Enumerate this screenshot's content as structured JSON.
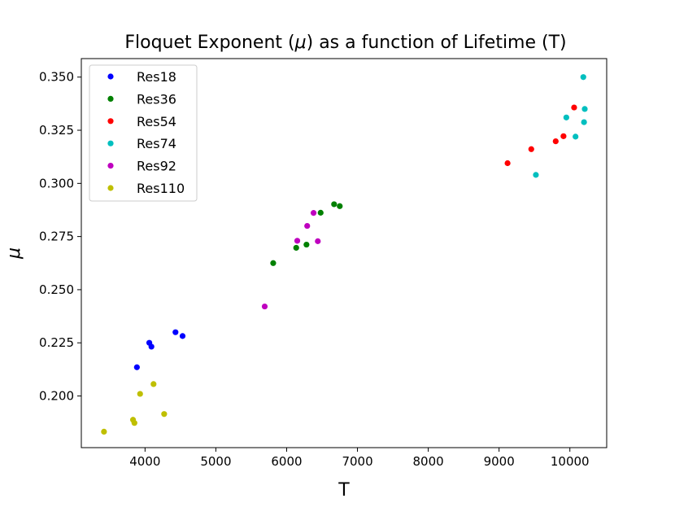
{
  "chart_data": {
    "type": "scatter",
    "title_parts": [
      "Floquet Exponent (",
      "μ",
      ") as a function of Lifetime (T)"
    ],
    "xlabel": "T",
    "ylabel": "μ",
    "xlim": [
      3100,
      10520
    ],
    "ylim": [
      0.1757,
      0.3587
    ],
    "xticks": [
      4000,
      5000,
      6000,
      7000,
      8000,
      9000,
      10000
    ],
    "yticks": [
      0.2,
      0.225,
      0.25,
      0.275,
      0.3,
      0.325,
      0.35
    ],
    "xtick_labels": [
      "4000",
      "5000",
      "6000",
      "7000",
      "8000",
      "9000",
      "10000"
    ],
    "ytick_labels": [
      "0.200",
      "0.225",
      "0.250",
      "0.275",
      "0.300",
      "0.325",
      "0.350"
    ],
    "legend_position": "upper-left",
    "grid": false,
    "series": [
      {
        "name": "Res18",
        "color": "#0000ff",
        "points": [
          [
            3885,
            0.2135
          ],
          [
            4060,
            0.225
          ],
          [
            4090,
            0.2232
          ],
          [
            4430,
            0.23
          ],
          [
            4530,
            0.2282
          ]
        ]
      },
      {
        "name": "Res36",
        "color": "#008000",
        "points": [
          [
            5810,
            0.2625
          ],
          [
            6135,
            0.2697
          ],
          [
            6280,
            0.2712
          ],
          [
            6480,
            0.2862
          ],
          [
            6670,
            0.2902
          ],
          [
            6750,
            0.2893
          ]
        ]
      },
      {
        "name": "Res54",
        "color": "#ff0000",
        "points": [
          [
            9120,
            0.3095
          ],
          [
            9455,
            0.3161
          ],
          [
            9800,
            0.3198
          ],
          [
            9910,
            0.3222
          ],
          [
            10060,
            0.3357
          ]
        ]
      },
      {
        "name": "Res74",
        "color": "#00bfbf",
        "points": [
          [
            9520,
            0.304
          ],
          [
            9950,
            0.331
          ],
          [
            10080,
            0.322
          ],
          [
            10190,
            0.35
          ],
          [
            10200,
            0.3288
          ],
          [
            10210,
            0.335
          ]
        ]
      },
      {
        "name": "Res92",
        "color": "#bf00bf",
        "points": [
          [
            5690,
            0.2421
          ],
          [
            6150,
            0.273
          ],
          [
            6290,
            0.28
          ],
          [
            6380,
            0.2861
          ],
          [
            6440,
            0.2728
          ]
        ]
      },
      {
        "name": "Res110",
        "color": "#bfbf00",
        "points": [
          [
            3420,
            0.1832
          ],
          [
            3830,
            0.1888
          ],
          [
            3850,
            0.1873
          ],
          [
            3930,
            0.201
          ],
          [
            4120,
            0.2056
          ],
          [
            4270,
            0.1915
          ]
        ]
      }
    ]
  }
}
